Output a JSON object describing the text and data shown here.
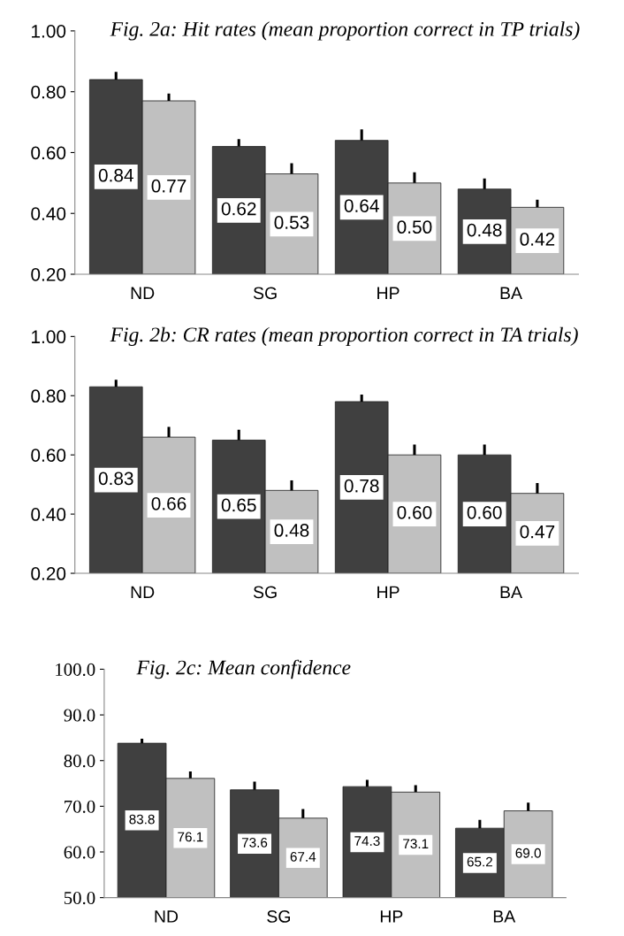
{
  "chart_data": [
    {
      "type": "bar",
      "title": "Fig. 2a: Hit rates (mean proportion correct in TP trials)",
      "categories": [
        "ND",
        "SG",
        "HP",
        "BA"
      ],
      "series": [
        {
          "color": "#404040",
          "values": [
            0.84,
            0.62,
            0.64,
            0.48
          ],
          "value_labels": [
            "0.84",
            "0.62",
            "0.64",
            "0.48"
          ],
          "errors": [
            [
              0.84,
              0.865
            ],
            [
              0.62,
              0.644
            ],
            [
              0.64,
              0.676
            ],
            [
              0.48,
              0.515
            ]
          ]
        },
        {
          "color": "#c0c0c0",
          "values": [
            0.77,
            0.53,
            0.5,
            0.42
          ],
          "value_labels": [
            "0.77",
            "0.53",
            "0.50",
            "0.42"
          ],
          "errors": [
            [
              0.77,
              0.794
            ],
            [
              0.53,
              0.565
            ],
            [
              0.5,
              0.535
            ],
            [
              0.42,
              0.445
            ]
          ]
        }
      ],
      "ylim": [
        0.2,
        1.0
      ],
      "yticks": [
        {
          "value": 0.2,
          "label": "0.20"
        },
        {
          "value": 0.4,
          "label": "0.40"
        },
        {
          "value": 0.6,
          "label": "0.60"
        },
        {
          "value": 0.8,
          "label": "0.80"
        },
        {
          "value": 1.0,
          "label": "1.00"
        }
      ],
      "grid": false,
      "legend": false
    },
    {
      "type": "bar",
      "title": "Fig. 2b: CR rates (mean proportion correct in TA trials)",
      "categories": [
        "ND",
        "SG",
        "HP",
        "BA"
      ],
      "series": [
        {
          "color": "#404040",
          "values": [
            0.83,
            0.65,
            0.78,
            0.6
          ],
          "value_labels": [
            "0.83",
            "0.65",
            "0.78",
            "0.60"
          ],
          "errors": [
            [
              0.83,
              0.854
            ],
            [
              0.65,
              0.685
            ],
            [
              0.78,
              0.804
            ],
            [
              0.6,
              0.635
            ]
          ]
        },
        {
          "color": "#c0c0c0",
          "values": [
            0.66,
            0.48,
            0.6,
            0.47
          ],
          "value_labels": [
            "0.66",
            "0.48",
            "0.60",
            "0.47"
          ],
          "errors": [
            [
              0.66,
              0.695
            ],
            [
              0.48,
              0.514
            ],
            [
              0.6,
              0.635
            ],
            [
              0.47,
              0.505
            ]
          ]
        }
      ],
      "ylim": [
        0.2,
        1.0
      ],
      "yticks": [
        {
          "value": 0.2,
          "label": "0.20"
        },
        {
          "value": 0.4,
          "label": "0.40"
        },
        {
          "value": 0.6,
          "label": "0.60"
        },
        {
          "value": 0.8,
          "label": "0.80"
        },
        {
          "value": 1.0,
          "label": "1.00"
        }
      ],
      "grid": false,
      "legend": false
    },
    {
      "type": "bar",
      "title": "Fig. 2c: Mean confidence",
      "categories": [
        "ND",
        "SG",
        "HP",
        "BA"
      ],
      "series": [
        {
          "color": "#404040",
          "values": [
            83.8,
            73.6,
            74.3,
            65.2
          ],
          "value_labels": [
            "83.8",
            "73.6",
            "74.3",
            "65.2"
          ],
          "errors": [
            [
              83.8,
              84.8
            ],
            [
              73.6,
              75.4
            ],
            [
              74.3,
              75.8
            ],
            [
              65.2,
              67.0
            ]
          ]
        },
        {
          "color": "#c0c0c0",
          "values": [
            76.1,
            67.4,
            73.1,
            69.0
          ],
          "value_labels": [
            "76.1",
            "67.4",
            "73.1",
            "69.0"
          ],
          "errors": [
            [
              76.1,
              77.6
            ],
            [
              67.4,
              69.4
            ],
            [
              73.1,
              74.6
            ],
            [
              69.0,
              70.8
            ]
          ]
        }
      ],
      "ylim": [
        50.0,
        100.0
      ],
      "yticks": [
        {
          "value": 50,
          "label": "50.0"
        },
        {
          "value": 60,
          "label": "60.0"
        },
        {
          "value": 70,
          "label": "70.0"
        },
        {
          "value": 80,
          "label": "80.0"
        },
        {
          "value": 90,
          "label": "90.0"
        },
        {
          "value": 100,
          "label": "100.0"
        }
      ],
      "grid": false,
      "legend": false
    }
  ]
}
